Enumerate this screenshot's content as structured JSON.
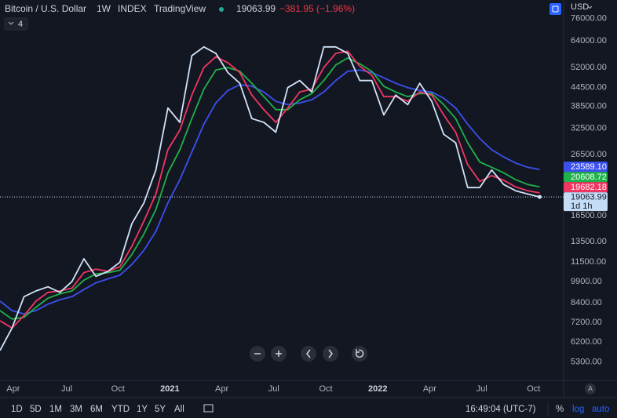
{
  "chart_data": {
    "type": "line",
    "title": "Bitcoin / U.S. Dollar",
    "interval": "1W",
    "exchange": "INDEX",
    "source": "TradingView",
    "change": "−381.95 (−1.96%)",
    "indicator": "4",
    "currency": "USD",
    "log_scale": true,
    "countdown": "1d 1h",
    "scale_mode": "A",
    "x": [
      0,
      3,
      6,
      9,
      12,
      15,
      18,
      21,
      24,
      27,
      30,
      33,
      36,
      39,
      42,
      45,
      48,
      51,
      54,
      57,
      60,
      63,
      66,
      69,
      72,
      75,
      78,
      81,
      84,
      87,
      90,
      93,
      96,
      99,
      102,
      105,
      108,
      111,
      114,
      117,
      120,
      123,
      126,
      129,
      132,
      135
    ],
    "xlim": [
      0,
      141
    ],
    "xticks": [
      {
        "value": 3.3,
        "label": "Apr"
      },
      {
        "value": 16.7,
        "label": "Jul"
      },
      {
        "value": 29.5,
        "label": "Oct"
      },
      {
        "value": 42.5,
        "label": "2021"
      },
      {
        "value": 55.5,
        "label": "Apr"
      },
      {
        "value": 68.5,
        "label": "Jul"
      },
      {
        "value": 81.5,
        "label": "Oct"
      },
      {
        "value": 94.5,
        "label": "2022"
      },
      {
        "value": 107.5,
        "label": "Apr"
      },
      {
        "value": 120.5,
        "label": "Jul"
      },
      {
        "value": 133.5,
        "label": "Oct"
      }
    ],
    "ylim": [
      4600,
      87750
    ],
    "yticks": [
      {
        "value": 76000,
        "label": "76000.00"
      },
      {
        "value": 64000,
        "label": "64000.00"
      },
      {
        "value": 52000,
        "label": "52000.00"
      },
      {
        "value": 44500,
        "label": "44500.00"
      },
      {
        "value": 38500,
        "label": "38500.00"
      },
      {
        "value": 32500,
        "label": "32500.00"
      },
      {
        "value": 26500,
        "label": "26500.00"
      },
      {
        "value": 16500,
        "label": "16500.00"
      },
      {
        "value": 13500,
        "label": "13500.00"
      },
      {
        "value": 11500,
        "label": "11500.00"
      },
      {
        "value": 9900,
        "label": "9900.00"
      },
      {
        "value": 8400,
        "label": "8400.00"
      },
      {
        "value": 7200,
        "label": "7200.00"
      },
      {
        "value": 6200,
        "label": "6200.00"
      },
      {
        "value": 5300,
        "label": "5300.00"
      }
    ],
    "series": [
      {
        "color": "#d1e3f8",
        "values": [
          5800,
          6900,
          8800,
          9200,
          9500,
          9100,
          9900,
          11800,
          10300,
          10700,
          11500,
          15500,
          18200,
          23500,
          38000,
          34000,
          57000,
          61000,
          58000,
          50000,
          46000,
          35000,
          34000,
          31500,
          44500,
          47000,
          43000,
          61000,
          61000,
          58000,
          47000,
          47000,
          36000,
          42000,
          39000,
          46000,
          40000,
          31000,
          29000,
          20500,
          20500,
          23500,
          21000,
          20000,
          19500,
          19063.99
        ]
      },
      {
        "color": "#f23662",
        "values": [
          7300,
          6900,
          7600,
          8500,
          9100,
          9200,
          9400,
          10600,
          10900,
          10700,
          11100,
          13000,
          15800,
          19500,
          27500,
          32000,
          42000,
          52000,
          56500,
          54000,
          50000,
          42000,
          37500,
          34000,
          38000,
          43000,
          44000,
          52000,
          58000,
          59000,
          52500,
          49000,
          41500,
          41500,
          40000,
          43000,
          42000,
          36000,
          31500,
          24500,
          21500,
          22500,
          21700,
          20600,
          20000,
          19682.18
        ],
        "value_labels": [
          null,
          null,
          null,
          null,
          null,
          null,
          null,
          null,
          null,
          null,
          null,
          null,
          null,
          null,
          null,
          null,
          null,
          null,
          null,
          null,
          null,
          null,
          null,
          null,
          null,
          null,
          null,
          null,
          null,
          null,
          null,
          null,
          null,
          null,
          null,
          null,
          null,
          null,
          null,
          null,
          null,
          null,
          null,
          null,
          null,
          "19682.18"
        ]
      },
      {
        "color": "#1fb24a",
        "values": [
          7900,
          7400,
          7500,
          8100,
          8700,
          9000,
          9200,
          10000,
          10500,
          10600,
          10800,
          12200,
          14300,
          17300,
          23000,
          27500,
          35000,
          44000,
          51000,
          52000,
          50500,
          46000,
          41500,
          37500,
          37500,
          40500,
          42500,
          47000,
          53000,
          56000,
          53500,
          50500,
          45000,
          43000,
          41500,
          42500,
          42500,
          39000,
          35000,
          29000,
          25000,
          24000,
          23000,
          21800,
          21000,
          20608.72
        ],
        "value_labels": [
          null,
          null,
          null,
          null,
          null,
          null,
          null,
          null,
          null,
          null,
          null,
          null,
          null,
          null,
          null,
          null,
          null,
          null,
          null,
          null,
          null,
          null,
          null,
          null,
          null,
          null,
          null,
          null,
          null,
          null,
          null,
          null,
          null,
          null,
          null,
          null,
          null,
          null,
          null,
          null,
          null,
          null,
          null,
          null,
          null,
          "20608.72"
        ]
      },
      {
        "color": "#3c50f0",
        "values": [
          8500,
          7900,
          7700,
          7900,
          8300,
          8600,
          8800,
          9300,
          9800,
          10100,
          10400,
          11300,
          12600,
          14600,
          18200,
          21800,
          27000,
          33500,
          39500,
          43500,
          45500,
          45000,
          43000,
          40000,
          39000,
          39500,
          40500,
          43000,
          47000,
          50500,
          51000,
          50000,
          48000,
          46000,
          44500,
          43500,
          43000,
          41000,
          38000,
          33500,
          30000,
          27500,
          26000,
          24800,
          24000,
          23589.1
        ],
        "value_labels": [
          null,
          null,
          null,
          null,
          null,
          null,
          null,
          null,
          null,
          null,
          null,
          null,
          null,
          null,
          null,
          null,
          null,
          null,
          null,
          null,
          null,
          null,
          null,
          null,
          null,
          null,
          null,
          null,
          null,
          null,
          null,
          null,
          null,
          null,
          null,
          null,
          null,
          null,
          null,
          null,
          null,
          null,
          null,
          null,
          null,
          "23589.10"
        ]
      }
    ]
  },
  "bottom_bar": {
    "ranges": [
      "1D",
      "5D",
      "1M",
      "3M",
      "6M",
      "YTD",
      "1Y",
      "5Y",
      "All"
    ],
    "time": "16:49:04 (UTC-7)",
    "percent": "%",
    "log": "log",
    "auto": "auto"
  }
}
